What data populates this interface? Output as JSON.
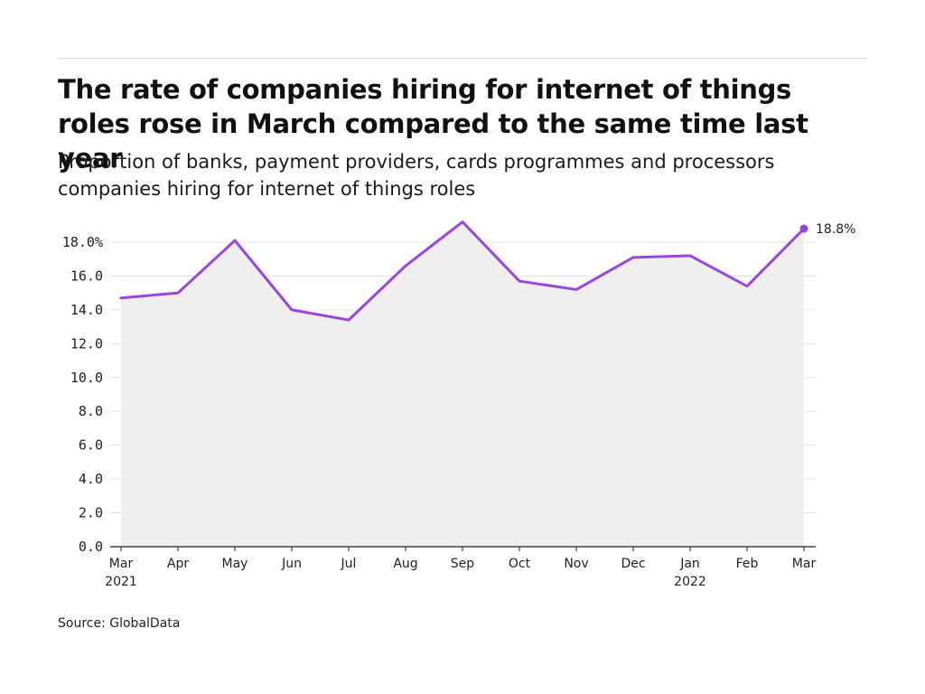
{
  "title": "The rate of companies hiring for internet of things roles rose in March compared to the same time last year",
  "subtitle": "Proportion of banks, payment providers, cards programmes and processors companies hiring for internet of things roles",
  "source": "Source: GlobalData",
  "chart_data": {
    "type": "area",
    "title": "The rate of companies hiring for internet of things roles rose in March compared to the same time last year",
    "subtitle": "Proportion of banks, payment providers, cards programmes and processors companies hiring for internet of things roles",
    "xlabel": "",
    "ylabel": "",
    "categories": [
      "Mar",
      "Apr",
      "May",
      "Jun",
      "Jul",
      "Aug",
      "Sep",
      "Oct",
      "Nov",
      "Dec",
      "Jan",
      "Feb",
      "Mar"
    ],
    "year_labels": [
      {
        "index": 0,
        "label": "2021"
      },
      {
        "index": 10,
        "label": "2022"
      }
    ],
    "series": [
      {
        "values": [
          14.7,
          15.0,
          18.1,
          14.0,
          13.4,
          16.6,
          19.2,
          15.7,
          15.2,
          17.1,
          17.2,
          15.4,
          18.8
        ]
      }
    ],
    "ylim": [
      0,
      18
    ],
    "yticks": [
      0,
      2,
      4,
      6,
      8,
      10,
      12,
      14,
      16,
      18
    ],
    "ytick_labels": [
      "0.0",
      "2.0",
      "4.0",
      "6.0",
      "8.0",
      "10.0",
      "12.0",
      "14.0",
      "16.0",
      "18.0%"
    ],
    "end_label": "18.8%",
    "grid": true,
    "legend": "none",
    "colors": {
      "line": "#9b45e0",
      "area": "#efefef",
      "grid": "#e3e3e3",
      "axis": "#222222"
    }
  }
}
